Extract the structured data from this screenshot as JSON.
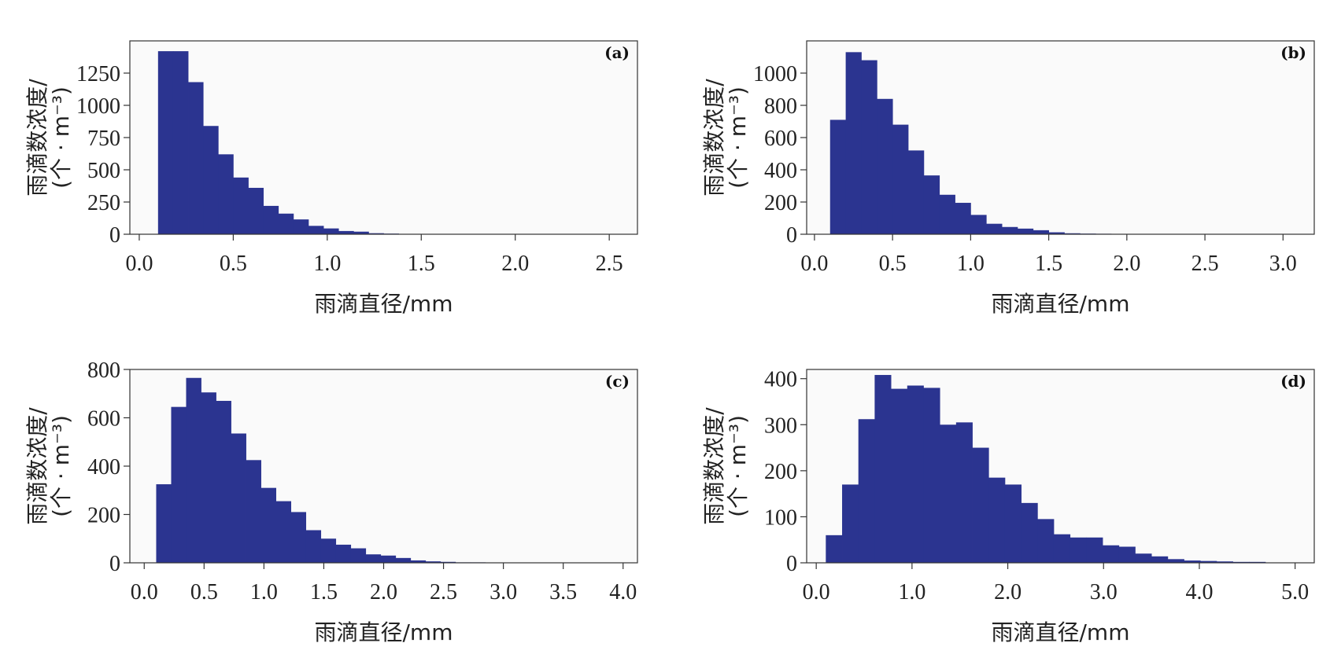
{
  "colors": {
    "bar": "#2b3490",
    "plot_bg": "#fafafa",
    "axis": "#333333"
  },
  "chart_data": [
    {
      "type": "bar",
      "panel_label": "(a)",
      "xlabel": "雨滴直径/mm",
      "ylabel": "雨滴数浓度/",
      "ylabel_unit": "(个 · m⁻³)",
      "xlim": [
        -0.05,
        2.65
      ],
      "ylim": [
        0,
        1500
      ],
      "xticks": [
        0.0,
        0.5,
        1.0,
        1.5,
        2.0,
        2.5
      ],
      "xtick_labels": [
        "0.0",
        "0.5",
        "1.0",
        "1.5",
        "2.0",
        "2.5"
      ],
      "yticks": [
        0,
        250,
        500,
        750,
        1000,
        1250
      ],
      "ytick_labels": [
        "0",
        "250",
        "500",
        "750",
        "1000",
        "1250"
      ],
      "bin_start": 0.1,
      "bin_width": 0.08,
      "values": [
        1420,
        1420,
        1180,
        840,
        620,
        440,
        360,
        220,
        160,
        115,
        65,
        45,
        25,
        20,
        8,
        5,
        3,
        2,
        1,
        1
      ]
    },
    {
      "type": "bar",
      "panel_label": "(b)",
      "xlabel": "雨滴直径/mm",
      "ylabel": "雨滴数浓度/",
      "ylabel_unit": "(个 · m⁻³)",
      "xlim": [
        -0.05,
        3.2
      ],
      "ylim": [
        0,
        1200
      ],
      "xticks": [
        0.0,
        0.5,
        1.0,
        1.5,
        2.0,
        2.5,
        3.0
      ],
      "xtick_labels": [
        "0.0",
        "0.5",
        "1.0",
        "1.5",
        "2.0",
        "2.5",
        "3.0"
      ],
      "yticks": [
        0,
        200,
        400,
        600,
        800,
        1000
      ],
      "ytick_labels": [
        "0",
        "200",
        "400",
        "600",
        "800",
        "1000"
      ],
      "bin_start": 0.1,
      "bin_width": 0.1,
      "values": [
        710,
        1130,
        1080,
        840,
        680,
        520,
        365,
        245,
        195,
        120,
        65,
        45,
        35,
        25,
        12,
        6,
        4,
        3,
        2,
        1,
        1
      ]
    },
    {
      "type": "bar",
      "panel_label": "(c)",
      "xlabel": "雨滴直径/mm",
      "ylabel": "雨滴数浓度/",
      "ylabel_unit": "(个 · m⁻³)",
      "xlim": [
        -0.12,
        4.12
      ],
      "ylim": [
        0,
        800
      ],
      "xticks": [
        0.0,
        0.5,
        1.0,
        1.5,
        2.0,
        2.5,
        3.0,
        3.5,
        4.0
      ],
      "xtick_labels": [
        "0.0",
        "0.5",
        "1.0",
        "1.5",
        "2.0",
        "2.5",
        "3.0",
        "3.5",
        "4.0"
      ],
      "yticks": [
        0,
        200,
        400,
        600,
        800
      ],
      "ytick_labels": [
        "0",
        "200",
        "400",
        "600",
        "800"
      ],
      "bin_start": 0.1,
      "bin_width": 0.125,
      "values": [
        325,
        645,
        765,
        705,
        670,
        535,
        425,
        310,
        255,
        210,
        135,
        100,
        75,
        60,
        35,
        30,
        20,
        10,
        6,
        4,
        2,
        2,
        1,
        1
      ]
    },
    {
      "type": "bar",
      "panel_label": "(d)",
      "xlabel": "雨滴直径/mm",
      "ylabel": "雨滴数浓度/",
      "ylabel_unit": "(个 · m⁻³)",
      "xlim": [
        -0.1,
        5.2
      ],
      "ylim": [
        0,
        420
      ],
      "xticks": [
        0.0,
        1.0,
        2.0,
        3.0,
        4.0,
        5.0
      ],
      "xtick_labels": [
        "0.0",
        "1.0",
        "2.0",
        "3.0",
        "4.0",
        "5.0"
      ],
      "yticks": [
        0,
        100,
        200,
        300,
        400
      ],
      "ytick_labels": [
        "0",
        "100",
        "200",
        "300",
        "400"
      ],
      "bin_start": 0.1,
      "bin_width": 0.17,
      "values": [
        60,
        170,
        312,
        408,
        378,
        385,
        380,
        300,
        305,
        250,
        185,
        170,
        130,
        95,
        62,
        55,
        55,
        38,
        35,
        20,
        14,
        8,
        5,
        4,
        3,
        2,
        2
      ]
    }
  ]
}
